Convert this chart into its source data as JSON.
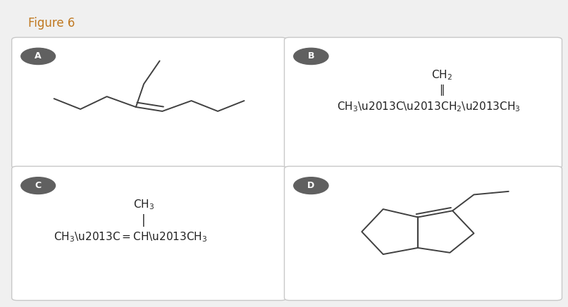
{
  "figure_title": "Figure 6",
  "title_color": "#c07820",
  "bg_color": "#f0f0f0",
  "panel_bg": "#ffffff",
  "panel_border": "#c8c8c8",
  "label_bg": "#606060",
  "label_color": "#ffffff",
  "line_color": "#404040",
  "text_color": "#222222",
  "panels": [
    "A",
    "B",
    "C",
    "D"
  ],
  "panel_label_fontsize": 9,
  "text_fontsize": 11
}
